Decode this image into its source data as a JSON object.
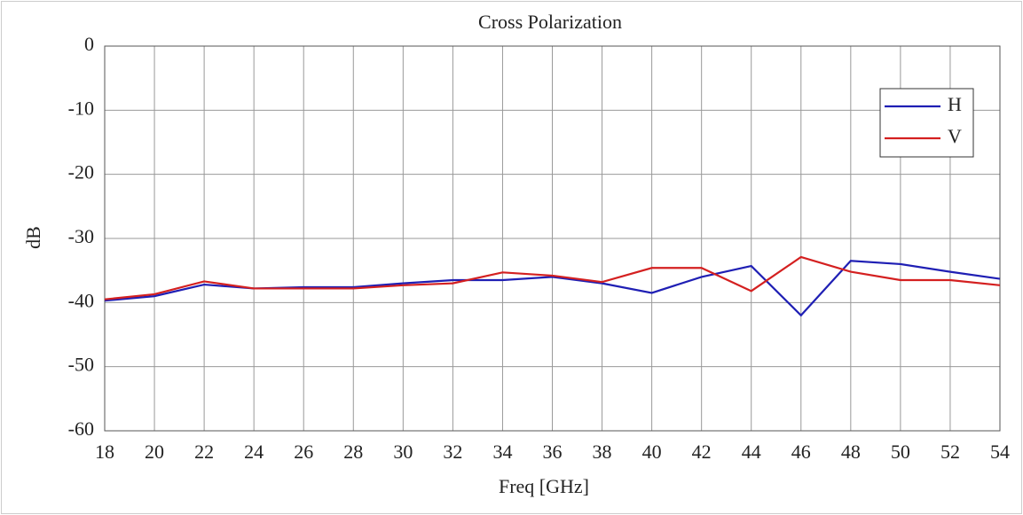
{
  "chart_data": {
    "type": "line",
    "title": "Cross Polarization",
    "x_label": "Freq [GHz]",
    "y_label": "dB",
    "x": [
      18,
      20,
      22,
      24,
      26,
      28,
      30,
      32,
      34,
      36,
      38,
      40,
      42,
      44,
      46,
      48,
      50,
      52,
      54
    ],
    "series": [
      {
        "name": "H",
        "color": "#1f1fb4",
        "values": [
          -39.7,
          -39,
          -37.2,
          -37.8,
          -37.6,
          -37.6,
          -37,
          -36.5,
          -36.5,
          -36,
          -37,
          -38.5,
          -36,
          -34.3,
          -42,
          -33.5,
          -34,
          -35.2,
          -36.3
        ]
      },
      {
        "name": "V",
        "color": "#d42020",
        "values": [
          -39.5,
          -38.7,
          -36.7,
          -37.8,
          -37.8,
          -37.8,
          -37.3,
          -37,
          -35.3,
          -35.8,
          -36.8,
          -34.6,
          -34.6,
          -38.2,
          -32.9,
          -35.2,
          -36.5,
          -36.5,
          -37.3
        ]
      }
    ],
    "xlim": [
      18,
      54
    ],
    "xticks": [
      18,
      20,
      22,
      24,
      26,
      28,
      30,
      32,
      34,
      36,
      38,
      40,
      42,
      44,
      46,
      48,
      50,
      52,
      54
    ],
    "ylim": [
      -60,
      0
    ],
    "yticks": [
      0,
      -10,
      -20,
      -30,
      -40,
      -50,
      -60
    ],
    "grid": true,
    "legend": "upper right"
  }
}
